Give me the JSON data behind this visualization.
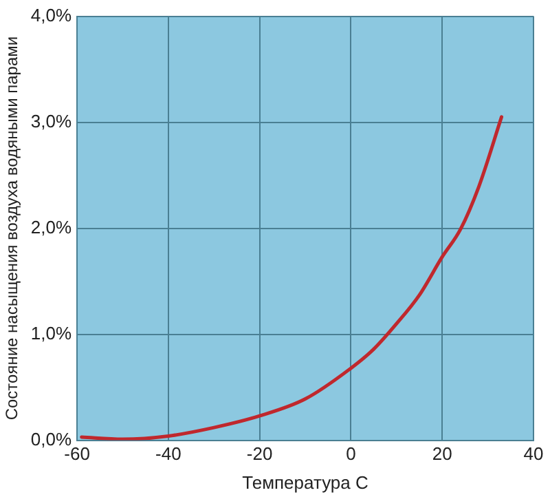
{
  "chart_data": {
    "type": "line",
    "xlabel": "Температура C",
    "ylabel": "Состояние насыщения воздуха водяными парами",
    "series": [
      {
        "color": "#c0282d",
        "x": [
          -59,
          -50,
          -40,
          -30,
          -20,
          -10,
          0,
          5,
          10,
          15,
          20,
          24,
          28,
          33
        ],
        "values": [
          0.03,
          0.01,
          0.04,
          0.12,
          0.23,
          0.39,
          0.68,
          0.86,
          1.1,
          1.37,
          1.73,
          1.99,
          2.39,
          3.05
        ]
      }
    ],
    "xlim": [
      -60,
      40
    ],
    "xticks": [
      -60,
      -40,
      -20,
      0,
      20,
      40
    ],
    "ylim": [
      0,
      4
    ],
    "yticks": [
      {
        "value": 0,
        "label": "0,0%"
      },
      {
        "value": 1,
        "label": "1,0%"
      },
      {
        "value": 2,
        "label": "2,0%"
      },
      {
        "value": 3,
        "label": "3,0%"
      },
      {
        "value": 4,
        "label": "4,0%"
      }
    ],
    "grid": true,
    "legend": false,
    "marker": "none",
    "line_style": "solid"
  }
}
